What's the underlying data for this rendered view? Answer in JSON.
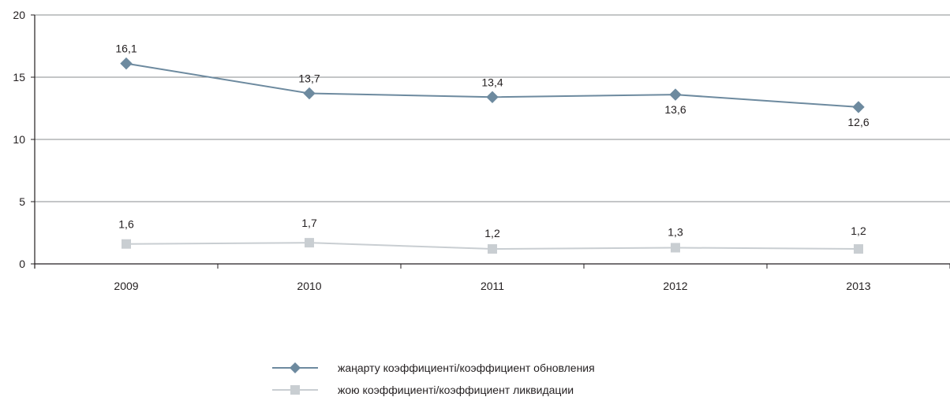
{
  "chart_data": {
    "type": "line",
    "categories": [
      "2009",
      "2010",
      "2011",
      "2012",
      "2013"
    ],
    "ylim": [
      0,
      20
    ],
    "yticks": [
      0,
      5,
      10,
      15,
      20
    ],
    "grid": true,
    "legend_position": "bottom-center",
    "series": [
      {
        "name": "жаңарту коэффициенті/коэффициент обновления",
        "values": [
          16.1,
          13.7,
          13.4,
          13.6,
          12.6
        ],
        "labels": [
          "16,1",
          "13,7",
          "13,4",
          "13,6",
          "12,6"
        ],
        "color": "#6d8a9f",
        "marker": "diamond"
      },
      {
        "name": "жою коэффициенті/коэффициент ликвидации",
        "values": [
          1.6,
          1.7,
          1.2,
          1.3,
          1.2
        ],
        "labels": [
          "1,6",
          "1,7",
          "1,2",
          "1,3",
          "1,2"
        ],
        "color": "#c9ced2",
        "marker": "square"
      }
    ]
  }
}
